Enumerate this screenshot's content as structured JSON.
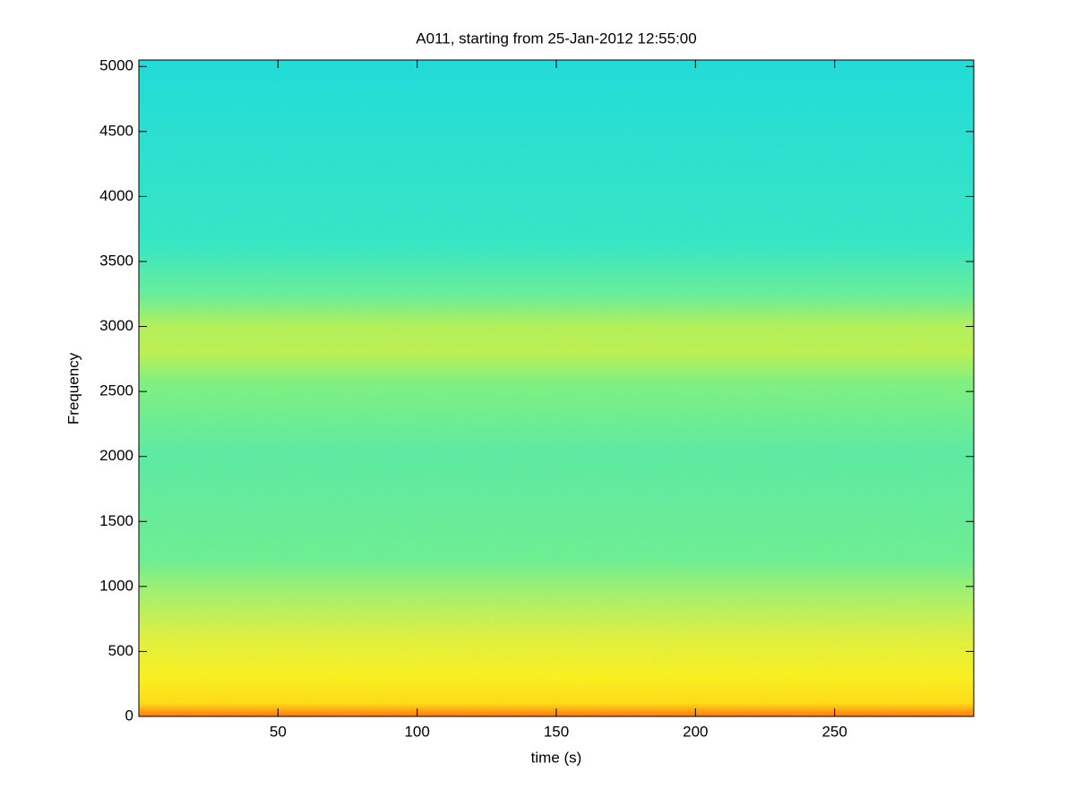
{
  "chart_data": {
    "type": "spectrogram",
    "title": "A011, starting from 25-Jan-2012 12:55:00",
    "x_label": "time (s)",
    "y_label": "Frequency",
    "xlim": [
      0,
      300
    ],
    "xticks": [
      50,
      100,
      150,
      200,
      250
    ],
    "ylim": [
      0,
      5050
    ],
    "yticks": [
      0,
      500,
      1000,
      1500,
      2000,
      2500,
      3000,
      3500,
      4000,
      4500,
      5000
    ]
  }
}
